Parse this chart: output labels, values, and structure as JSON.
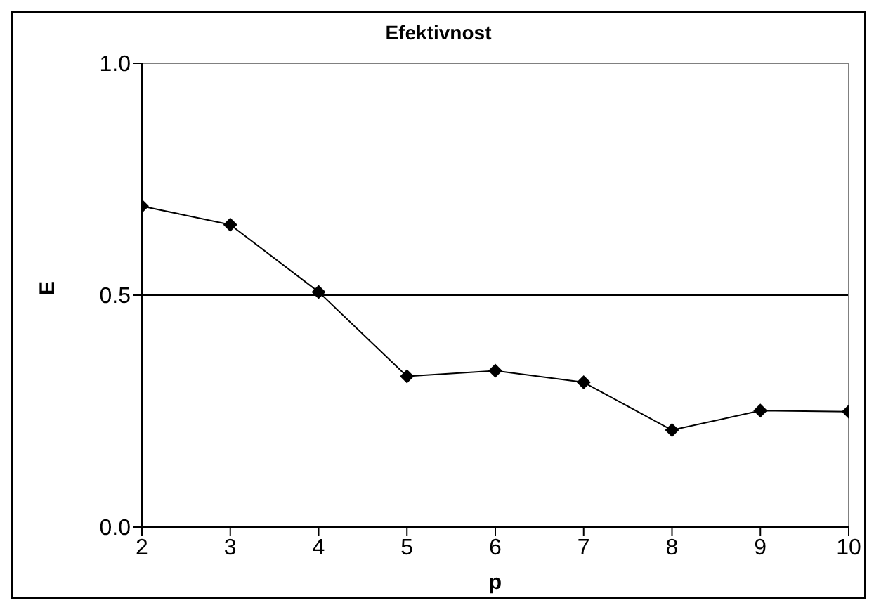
{
  "chart_data": {
    "type": "line",
    "title": "Efektivnost",
    "xlabel": "p",
    "ylabel": "E",
    "x": [
      2,
      3,
      4,
      5,
      6,
      7,
      8,
      9,
      10
    ],
    "series": [
      {
        "color": "#000000",
        "values": [
          0.692,
          0.652,
          0.507,
          0.325,
          0.337,
          0.312,
          0.209,
          0.251,
          0.249
        ]
      }
    ],
    "xlim": [
      2,
      10
    ],
    "xticks": [
      2,
      3,
      4,
      5,
      6,
      7,
      8,
      9,
      10
    ],
    "ylim": [
      0,
      1
    ],
    "yticks": [
      {
        "value": 0,
        "label": "0.0"
      },
      0.5,
      {
        "value": 1,
        "label": "1.0"
      }
    ],
    "grid": "y",
    "marker": "diamond",
    "line_style": "solid",
    "legend": false
  }
}
